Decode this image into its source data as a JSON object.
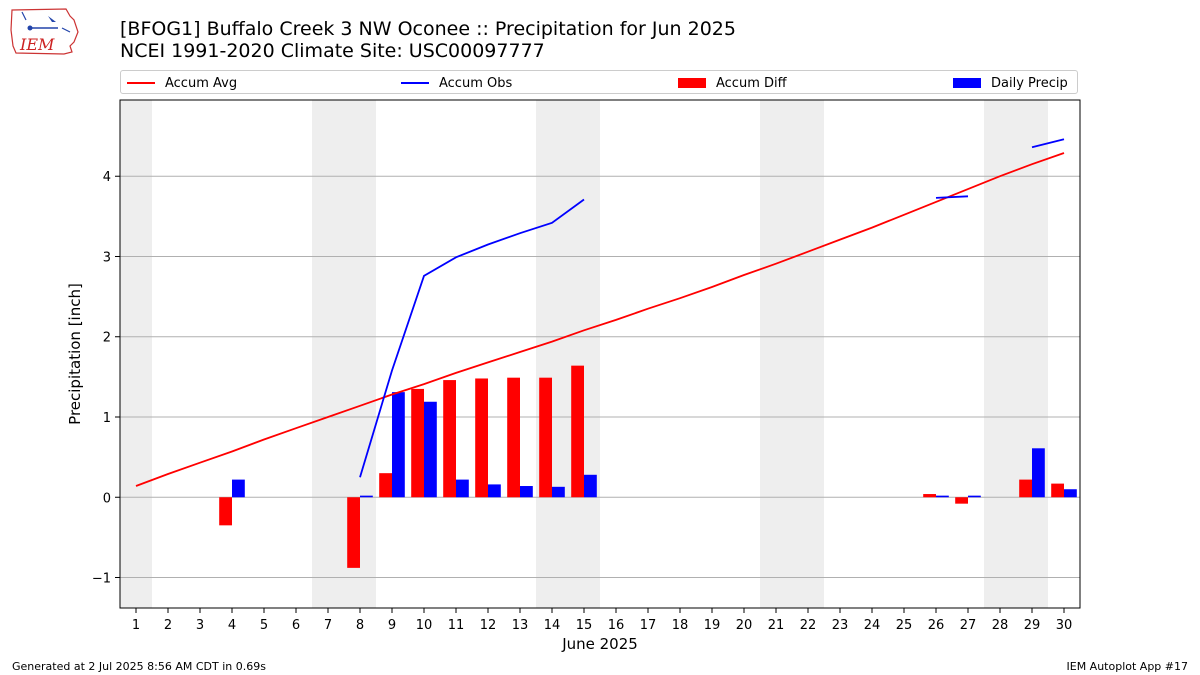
{
  "header": {
    "title": "[BFOG1] Buffalo Creek 3 NW Oconee :: Precipitation for Jun 2025",
    "subtitle": "NCEI 1991-2020 Climate Site: USC00097777"
  },
  "logo": {
    "text": "IEM"
  },
  "footer": {
    "generated": "Generated at 2 Jul 2025 8:56 AM CDT in 0.69s",
    "app": "IEM Autoplot App #17"
  },
  "colors": {
    "avg": "#ff0000",
    "obs": "#0000ff",
    "diff": "#ff0000",
    "daily": "#0000ff",
    "weekend_band": "#eeeeee",
    "grid": "#b0b0b0"
  },
  "chart_data": {
    "type": "bar",
    "xlabel": "June 2025",
    "ylabel": "Precipitation [inch]",
    "xlim": [
      0.5,
      30.5
    ],
    "ylim": [
      -1.38,
      4.95
    ],
    "yticks": [
      -1,
      0,
      1,
      2,
      3,
      4
    ],
    "ytick_labels": [
      "−1",
      "0",
      "1",
      "2",
      "3",
      "4"
    ],
    "grid": "horizontal",
    "legend": {
      "placement": "top",
      "entries": [
        "Accum Avg",
        "Accum Obs",
        "Accum Diff",
        "Daily Precip"
      ]
    },
    "days": [
      1,
      2,
      3,
      4,
      5,
      6,
      7,
      8,
      9,
      10,
      11,
      12,
      13,
      14,
      15,
      16,
      17,
      18,
      19,
      20,
      21,
      22,
      23,
      24,
      25,
      26,
      27,
      28,
      29,
      30
    ],
    "weekend_bands": [
      [
        0.5,
        1.5
      ],
      [
        6.5,
        8.5
      ],
      [
        13.5,
        15.5
      ],
      [
        20.5,
        22.5
      ],
      [
        27.5,
        29.5
      ]
    ],
    "series": [
      {
        "name": "Accum Avg",
        "kind": "line",
        "values": [
          0.14,
          0.29,
          0.43,
          0.57,
          0.72,
          0.86,
          1.0,
          1.14,
          1.28,
          1.41,
          1.55,
          1.68,
          1.81,
          1.94,
          2.08,
          2.21,
          2.35,
          2.48,
          2.62,
          2.77,
          2.91,
          3.06,
          3.21,
          3.36,
          3.52,
          3.68,
          3.84,
          4.0,
          4.15,
          4.29
        ]
      },
      {
        "name": "Accum Obs",
        "kind": "line",
        "values": [
          null,
          null,
          null,
          null,
          null,
          null,
          null,
          0.25,
          1.58,
          2.76,
          2.99,
          3.15,
          3.29,
          3.42,
          3.71,
          null,
          null,
          null,
          null,
          null,
          null,
          null,
          null,
          null,
          null,
          3.73,
          3.75,
          null,
          4.36,
          4.46
        ]
      },
      {
        "name": "Accum Diff",
        "kind": "bar",
        "values": [
          null,
          null,
          null,
          -0.35,
          null,
          null,
          null,
          -0.88,
          0.3,
          1.35,
          1.46,
          1.48,
          1.49,
          1.49,
          1.64,
          null,
          null,
          null,
          null,
          null,
          null,
          null,
          null,
          null,
          null,
          0.04,
          -0.08,
          null,
          0.22,
          0.17
        ]
      },
      {
        "name": "Daily Precip",
        "kind": "bar",
        "values": [
          null,
          null,
          null,
          0.22,
          null,
          null,
          null,
          0.02,
          1.31,
          1.19,
          0.22,
          0.16,
          0.14,
          0.13,
          0.28,
          null,
          null,
          null,
          null,
          null,
          null,
          null,
          null,
          null,
          null,
          0.02,
          0.02,
          null,
          0.61,
          0.1
        ]
      }
    ]
  }
}
